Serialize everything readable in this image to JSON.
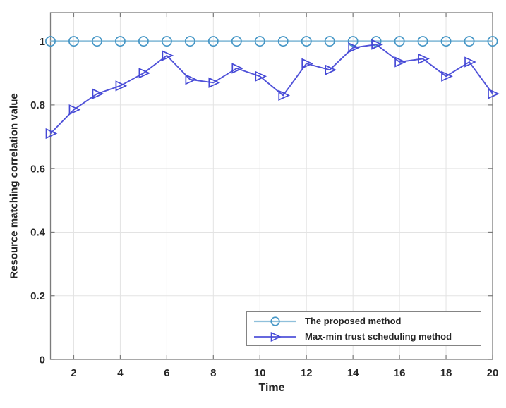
{
  "chart_data": {
    "type": "line",
    "title": "",
    "xlabel": "Time",
    "ylabel": "Resource matching correlation value",
    "xlim": [
      1,
      20
    ],
    "ylim": [
      0,
      1.09
    ],
    "x_ticks": [
      2,
      4,
      6,
      8,
      10,
      12,
      14,
      16,
      18,
      20
    ],
    "y_ticks": [
      0,
      0.2,
      0.4,
      0.6,
      0.8,
      1
    ],
    "y_tick_labels": [
      "0",
      "0.2",
      "0.4",
      "0.6",
      "0.8",
      "1"
    ],
    "grid": true,
    "legend_position": "lower right",
    "x": [
      1,
      2,
      3,
      4,
      5,
      6,
      7,
      8,
      9,
      10,
      11,
      12,
      13,
      14,
      15,
      16,
      17,
      18,
      19,
      20
    ],
    "series": [
      {
        "name": "The proposed method",
        "marker": "circle",
        "line_color": "#8fc0db",
        "marker_color": "#4596c6",
        "values": [
          1,
          1,
          1,
          1,
          1,
          1,
          1,
          1,
          1,
          1,
          1,
          1,
          1,
          1,
          1,
          1,
          1,
          1,
          1,
          1
        ]
      },
      {
        "name": "Max-min trust scheduling method",
        "marker": "triangle-right",
        "line_color": "#5153d9",
        "marker_color": "#4549d6",
        "values": [
          0.71,
          0.785,
          0.835,
          0.86,
          0.9,
          0.955,
          0.88,
          0.87,
          0.915,
          0.89,
          0.83,
          0.93,
          0.91,
          0.98,
          0.99,
          0.935,
          0.945,
          0.89,
          0.935,
          0.835
        ]
      }
    ],
    "colors": {
      "axis": "#7b7b7b",
      "grid": "#e3e3e3",
      "text": "#262626",
      "legend_border": "#848484",
      "background": "#ffffff"
    }
  }
}
